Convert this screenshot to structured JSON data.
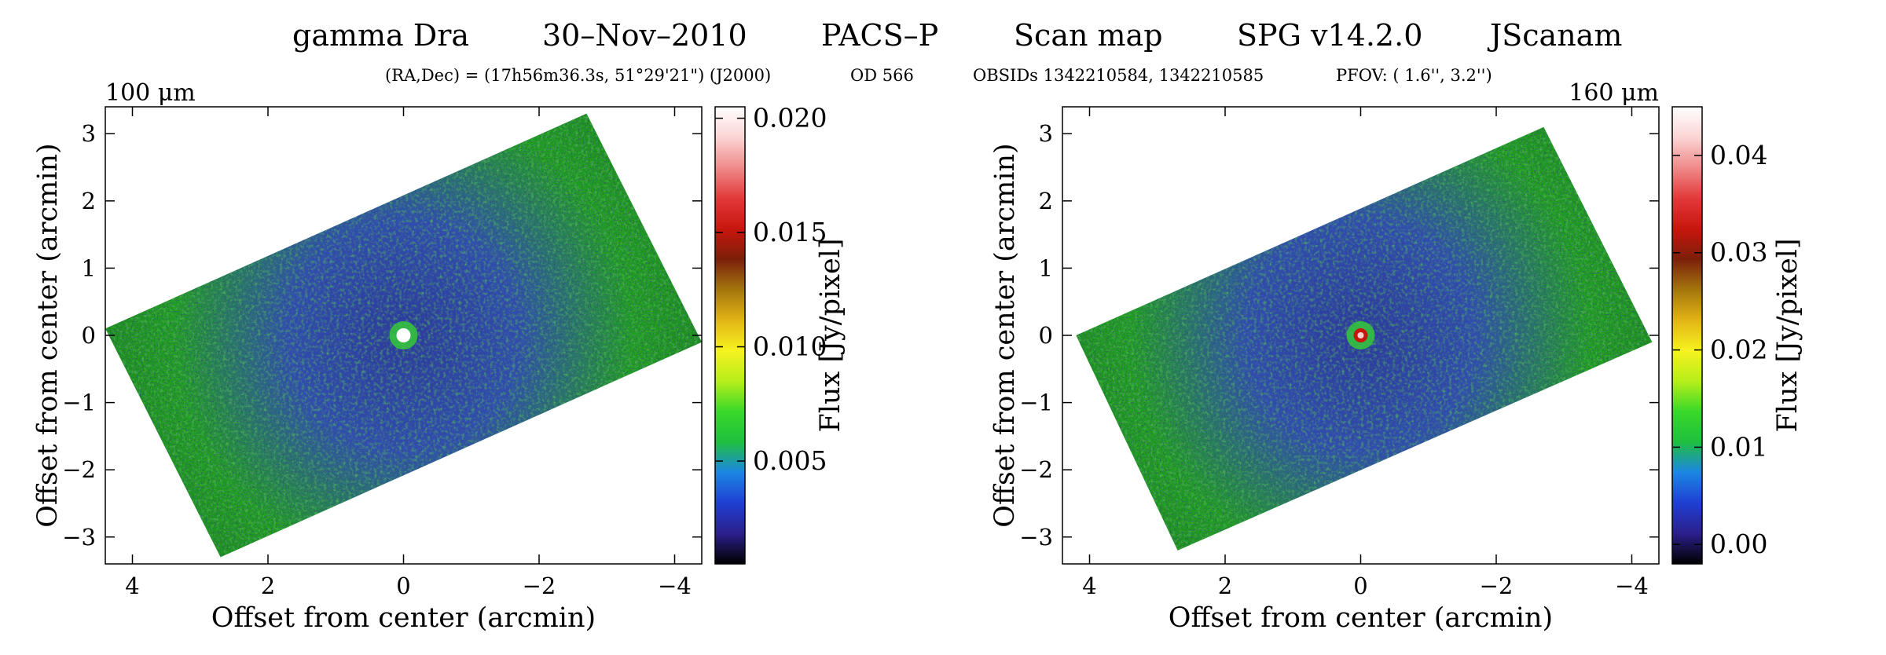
{
  "header": {
    "target": "gamma Dra",
    "date": "30–Nov–2010",
    "instrument": "PACS–P",
    "mode": "Scan map",
    "pipeline": "SPG v14.2.0",
    "mapper": "JScanam",
    "coords": "(RA,Dec) = (17h56m36.3s, 51°29'21\") (J2000)",
    "od": "OD 566",
    "obsids": "OBSIDs 1342210584, 1342210585",
    "pfov": "PFOV: ( 1.6'', 3.2'')"
  },
  "colors": {
    "map_green": "#1fa01f",
    "map_blue": "#2a3a9e",
    "colormap": [
      "#000000",
      "#2c1f8c",
      "#1f3fd2",
      "#1b86e4",
      "#1fbf3f",
      "#39d92a",
      "#b7ee1a",
      "#f6f21f",
      "#e2b416",
      "#a3760d",
      "#7b1f0a",
      "#c8160d",
      "#e23a3a",
      "#f08a8a",
      "#fbd4d4",
      "#ffffff"
    ]
  },
  "chart_data": [
    {
      "type": "heatmap",
      "band_label": "100 μm",
      "xlabel": "Offset from center (arcmin)",
      "ylabel": "Offset from center (arcmin)",
      "xlim": [
        4.4,
        -4.4
      ],
      "ylim": [
        -3.4,
        3.4
      ],
      "xticks": [
        4,
        2,
        0,
        -2,
        -4
      ],
      "xtick_labels": [
        "4",
        "2",
        "0",
        "−2",
        "−4"
      ],
      "yticks": [
        3,
        2,
        1,
        0,
        -1,
        -2,
        -3
      ],
      "ytick_labels": [
        "3",
        "2",
        "1",
        "0",
        "−1",
        "−2",
        "−3"
      ],
      "colorbar": {
        "label": "Flux [Jy/pixel]",
        "range": [
          0.0005,
          0.0205
        ],
        "ticks": [
          0.005,
          0.01,
          0.015,
          0.02
        ],
        "tick_labels": [
          "0.005",
          "0.010",
          "0.015",
          "0.020"
        ]
      },
      "source_position": [
        0.0,
        0.0
      ],
      "footprint_corners": [
        [
          4.4,
          0.1
        ],
        [
          -2.7,
          3.3
        ],
        [
          -4.4,
          -0.1
        ],
        [
          2.7,
          -3.3
        ]
      ]
    },
    {
      "type": "heatmap",
      "band_label": "160 μm",
      "xlabel": "Offset from center (arcmin)",
      "ylabel": "Offset from center (arcmin)",
      "xlim": [
        4.4,
        -4.4
      ],
      "ylim": [
        -3.4,
        3.4
      ],
      "xticks": [
        4,
        2,
        0,
        -2,
        -4
      ],
      "xtick_labels": [
        "4",
        "2",
        "0",
        "−2",
        "−4"
      ],
      "yticks": [
        3,
        2,
        1,
        0,
        -1,
        -2,
        -3
      ],
      "ytick_labels": [
        "3",
        "2",
        "1",
        "0",
        "−1",
        "−2",
        "−3"
      ],
      "colorbar": {
        "label": "Flux [Jy/pixel]",
        "range": [
          -0.002,
          0.045
        ],
        "ticks": [
          0.0,
          0.01,
          0.02,
          0.03,
          0.04
        ],
        "tick_labels": [
          "0.00",
          "0.01",
          "0.02",
          "0.03",
          "0.04"
        ]
      },
      "source_position": [
        0.0,
        0.0
      ],
      "footprint_corners": [
        [
          4.2,
          0.0
        ],
        [
          -2.7,
          3.1
        ],
        [
          -4.3,
          -0.1
        ],
        [
          2.7,
          -3.2
        ]
      ]
    }
  ]
}
